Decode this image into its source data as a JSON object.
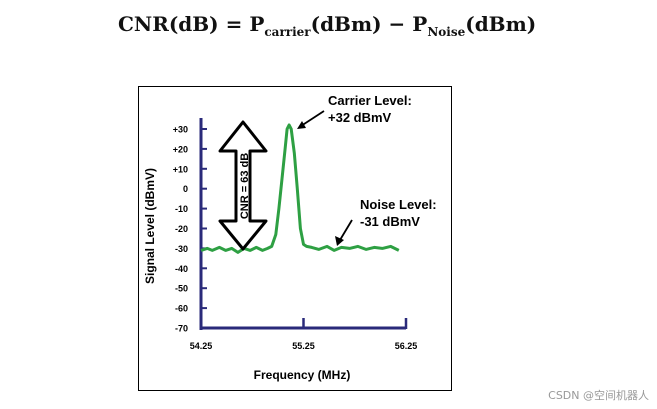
{
  "formula": {
    "lhs": "CNR(dB) = P",
    "sub1": "carrier",
    "mid": "(dBm) − P",
    "sub2": "Noise",
    "rhs": "(dBm)"
  },
  "watermark": "CSDN @空间机器人",
  "colors": {
    "trace": "#2ea043",
    "axis": "#2a2a7a",
    "text": "#000000"
  },
  "chart_data": {
    "type": "line",
    "title": "",
    "xlabel": "Frequency (MHz)",
    "ylabel": "Signal Level (dBmV)",
    "xlim": [
      54.25,
      56.25
    ],
    "ylim": [
      -70,
      35
    ],
    "x_ticks": [
      54.25,
      55.25,
      56.25
    ],
    "x_tick_labels": [
      "54.25",
      "55.25",
      "56.25"
    ],
    "y_ticks": [
      30,
      20,
      10,
      0,
      -10,
      -20,
      -30,
      -40,
      -50,
      -60,
      -70
    ],
    "y_tick_labels": [
      "+30",
      "+20",
      "+10",
      "0",
      "-10",
      "-20",
      "-30",
      "-40",
      "-50",
      "-60",
      "-70"
    ],
    "series": [
      {
        "x": [
          54.25,
          54.31,
          54.36,
          54.43,
          54.49,
          54.55,
          54.61,
          54.67,
          54.73,
          54.79,
          54.85,
          54.9,
          54.94,
          54.98,
          55.01,
          55.04,
          55.07,
          55.09,
          55.11,
          55.13,
          55.16,
          55.19,
          55.22,
          55.25,
          55.28,
          55.33,
          55.4,
          55.48,
          55.55,
          55.62,
          55.7,
          55.78,
          55.86,
          55.94,
          56.02,
          56.1,
          56.18
        ],
        "y": [
          -31,
          -30,
          -31,
          -29.5,
          -31,
          -30,
          -32,
          -30,
          -31,
          -29.5,
          -31,
          -30,
          -29,
          -23,
          -10,
          5,
          20,
          30,
          32,
          30,
          18,
          0,
          -20,
          -28,
          -29,
          -29.5,
          -30.5,
          -29,
          -31,
          -29.5,
          -30,
          -29,
          -30.5,
          -29.5,
          -30,
          -29,
          -31
        ]
      }
    ],
    "annotations": [
      {
        "text_lines": [
          "Carrier Level:",
          "+32 dBmV"
        ]
      },
      {
        "text_lines": [
          "Noise Level:",
          "-31 dBmV"
        ]
      },
      {
        "text": "CNR = 63 dB"
      }
    ],
    "grid": false,
    "legend": "none"
  }
}
